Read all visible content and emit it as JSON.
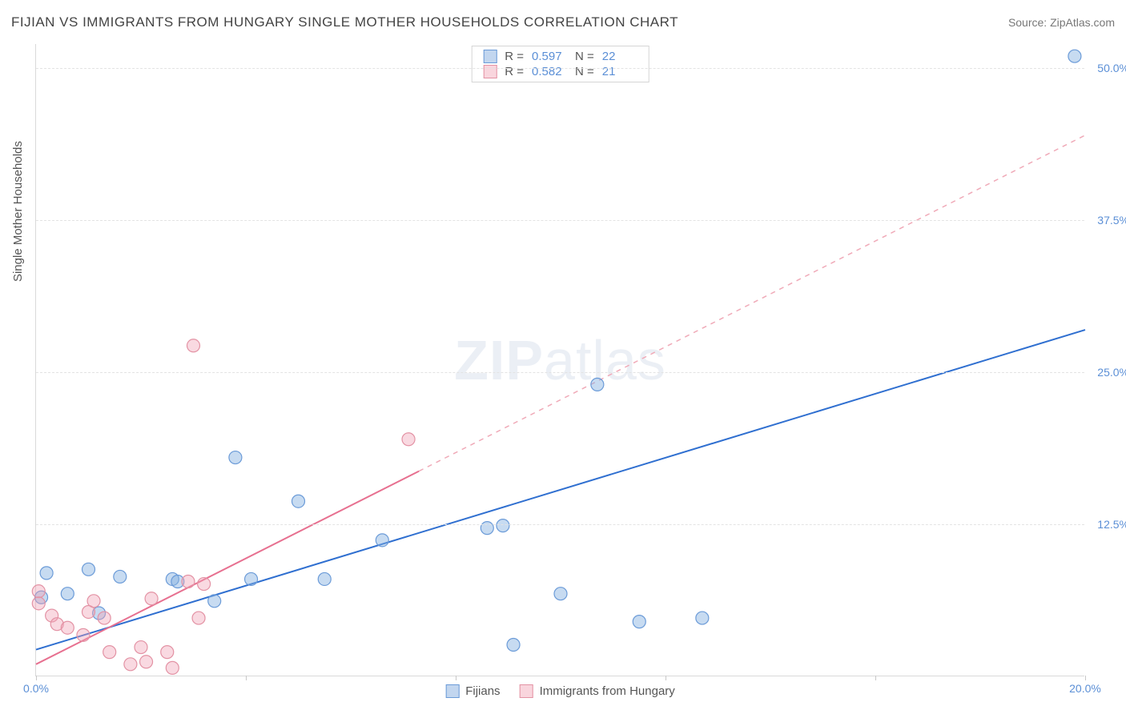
{
  "title": "FIJIAN VS IMMIGRANTS FROM HUNGARY SINGLE MOTHER HOUSEHOLDS CORRELATION CHART",
  "source": "Source: ZipAtlas.com",
  "y_axis_title": "Single Mother Households",
  "watermark": {
    "bold": "ZIP",
    "rest": "atlas"
  },
  "chart": {
    "type": "scatter",
    "xlim": [
      0,
      20
    ],
    "ylim": [
      0,
      52
    ],
    "x_ticks": [
      0,
      4,
      8,
      12,
      16,
      20
    ],
    "x_tick_labels": {
      "0": "0.0%",
      "20": "20.0%"
    },
    "y_grid": [
      12.5,
      25.0,
      37.5,
      50.0
    ],
    "y_labels": [
      "12.5%",
      "25.0%",
      "37.5%",
      "50.0%"
    ],
    "background_color": "#ffffff",
    "grid_color": "#e3e3e3",
    "axis_color": "#d9d9d9",
    "point_radius": 8,
    "series": [
      {
        "key": "fijians",
        "name": "Fijians",
        "color_fill": "rgba(130,175,225,0.45)",
        "color_stroke": "#6b9bd8",
        "trend_color": "#2f6fd0",
        "R": "0.597",
        "N": "22",
        "points": [
          [
            0.1,
            6.5
          ],
          [
            0.2,
            8.5
          ],
          [
            0.6,
            6.8
          ],
          [
            1.0,
            8.8
          ],
          [
            1.2,
            5.2
          ],
          [
            1.6,
            8.2
          ],
          [
            2.6,
            8.0
          ],
          [
            2.7,
            7.8
          ],
          [
            3.4,
            6.2
          ],
          [
            3.8,
            18.0
          ],
          [
            4.1,
            8.0
          ],
          [
            5.0,
            14.4
          ],
          [
            5.5,
            8.0
          ],
          [
            6.6,
            11.2
          ],
          [
            8.6,
            12.2
          ],
          [
            8.9,
            12.4
          ],
          [
            9.1,
            2.6
          ],
          [
            10.0,
            6.8
          ],
          [
            10.7,
            24.0
          ],
          [
            11.5,
            4.5
          ],
          [
            12.7,
            4.8
          ],
          [
            19.8,
            51.0
          ]
        ],
        "trend": {
          "x1": 0,
          "y1": 2.2,
          "x2": 20,
          "y2": 28.5,
          "solid_until_x": 20
        }
      },
      {
        "key": "hungary",
        "name": "Immigrants from Hungary",
        "color_fill": "rgba(240,160,180,0.40)",
        "color_stroke": "#e392a4",
        "trend_color": "#e77090",
        "R": "0.582",
        "N": "21",
        "points": [
          [
            0.05,
            7.0
          ],
          [
            0.05,
            6.0
          ],
          [
            0.3,
            5.0
          ],
          [
            0.4,
            4.3
          ],
          [
            0.6,
            4.0
          ],
          [
            0.9,
            3.4
          ],
          [
            1.0,
            5.3
          ],
          [
            1.1,
            6.2
          ],
          [
            1.3,
            4.8
          ],
          [
            1.4,
            2.0
          ],
          [
            1.8,
            1.0
          ],
          [
            2.0,
            2.4
          ],
          [
            2.1,
            1.2
          ],
          [
            2.2,
            6.4
          ],
          [
            2.5,
            2.0
          ],
          [
            2.6,
            0.7
          ],
          [
            2.9,
            7.8
          ],
          [
            3.0,
            27.2
          ],
          [
            3.1,
            4.8
          ],
          [
            3.2,
            7.6
          ],
          [
            7.1,
            19.5
          ]
        ],
        "trend": {
          "x1": 0,
          "y1": 1.0,
          "x2": 20,
          "y2": 44.5,
          "solid_until_x": 7.3
        }
      }
    ]
  },
  "legend_top": {
    "rows": [
      {
        "swatch": "blue",
        "r_label": "R =",
        "r_val": "0.597",
        "n_label": "N =",
        "n_val": "22"
      },
      {
        "swatch": "pink",
        "r_label": "R =",
        "r_val": "0.582",
        "n_label": "N =",
        "n_val": "21"
      }
    ]
  },
  "legend_bottom": {
    "items": [
      {
        "swatch": "blue",
        "label": "Fijians"
      },
      {
        "swatch": "pink",
        "label": "Immigrants from Hungary"
      }
    ]
  }
}
